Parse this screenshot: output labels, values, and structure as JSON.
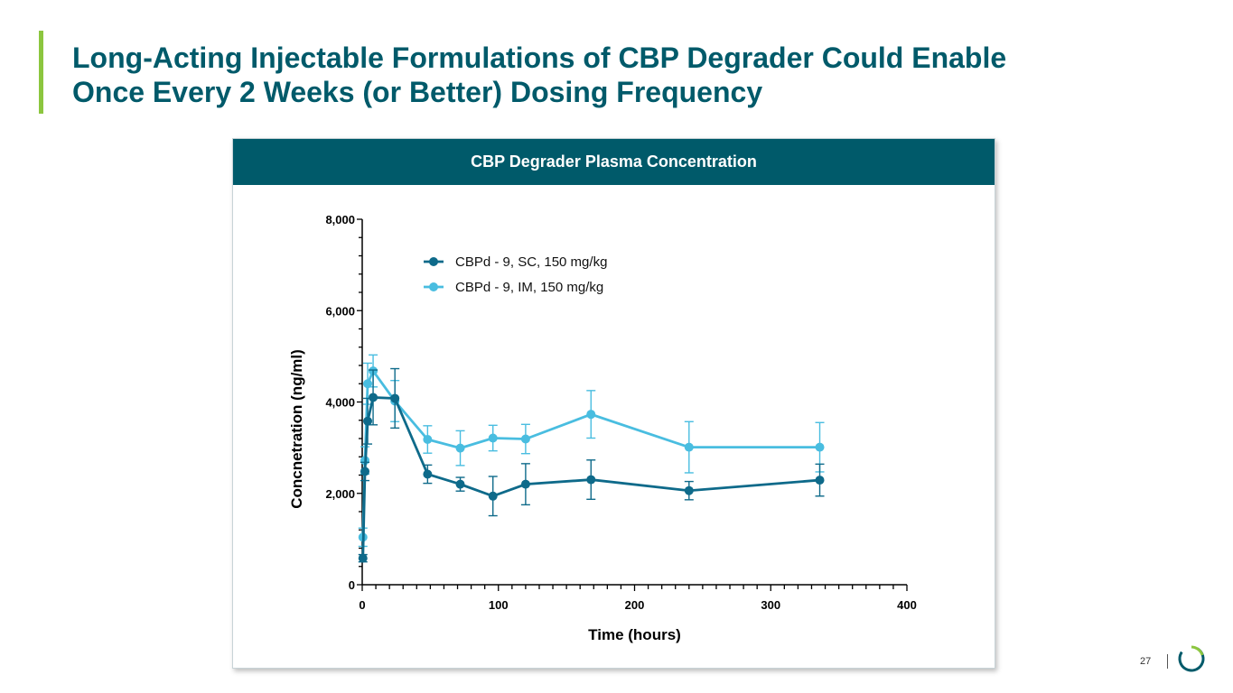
{
  "slide": {
    "title_line1": "Long-Acting Injectable Formulations of CBP Degrader Could Enable",
    "title_line2": "Once Every 2 Weeks (or Better) Dosing Frequency",
    "page_number": "27",
    "accent_color": "#8cc63f",
    "brand_color": "#005a6a"
  },
  "panel": {
    "header": "CBP Degrader Plasma Concentration"
  },
  "chart_data": {
    "type": "line",
    "title": "CBP Degrader Plasma Concentration",
    "xlabel": "Time (hours)",
    "ylabel": "Concnetration (ng/ml)",
    "xlim": [
      0,
      400
    ],
    "ylim": [
      0,
      8000
    ],
    "x_ticks": [
      0,
      100,
      200,
      300,
      400
    ],
    "x_tick_labels": [
      "0",
      "100",
      "200",
      "300",
      "400"
    ],
    "y_ticks": [
      0,
      2000,
      4000,
      6000,
      8000
    ],
    "y_tick_labels": [
      "0",
      "2,000",
      "4,000",
      "6,000",
      "8,000"
    ],
    "legend_position": "top-left",
    "series": [
      {
        "name": "CBPd - 9, SC, 150 mg/kg",
        "color": "#0e6a8a",
        "x": [
          0.5,
          2,
          4,
          8,
          24,
          48,
          72,
          96,
          120,
          168,
          240,
          336
        ],
        "values": [
          580,
          2480,
          3580,
          4100,
          4080,
          2420,
          2200,
          1940,
          2200,
          2300,
          2060,
          2290
        ],
        "errors": [
          80,
          200,
          500,
          600,
          650,
          200,
          150,
          430,
          450,
          430,
          200,
          350
        ]
      },
      {
        "name": "CBPd - 9, IM, 150 mg/kg",
        "color": "#49bde0",
        "x": [
          0.5,
          2,
          4,
          8,
          24,
          48,
          72,
          96,
          120,
          168,
          240,
          336
        ],
        "values": [
          1040,
          2720,
          4400,
          4680,
          4020,
          3180,
          2990,
          3210,
          3190,
          3730,
          3010,
          3010
        ],
        "errors": [
          200,
          300,
          450,
          350,
          450,
          300,
          380,
          280,
          320,
          520,
          560,
          540
        ]
      }
    ]
  }
}
